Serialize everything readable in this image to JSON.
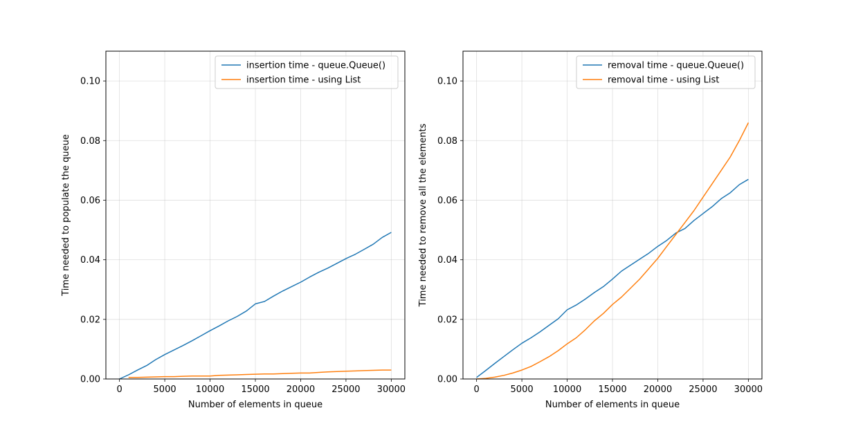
{
  "colors": {
    "blue": "#1f77b4",
    "orange": "#ff7f0e",
    "grid": "#b0b0b0"
  },
  "chart_data": [
    {
      "type": "line",
      "title": "",
      "xlabel": "Number of elements in queue",
      "ylabel": "Time needed to populate the queue",
      "xlim": [
        -1500,
        31500
      ],
      "ylim": [
        0.0,
        0.11
      ],
      "xticks": [
        0,
        5000,
        10000,
        15000,
        20000,
        25000,
        30000
      ],
      "xtick_labels": [
        "0",
        "5000",
        "10000",
        "15000",
        "20000",
        "25000",
        "30000"
      ],
      "yticks": [
        0.0,
        0.02,
        0.04,
        0.06,
        0.08,
        0.1
      ],
      "ytick_labels": [
        "0.00",
        "0.02",
        "0.04",
        "0.06",
        "0.08",
        "0.10"
      ],
      "grid": true,
      "legend": "upper right",
      "series": [
        {
          "name": "insertion time - queue.Queue()",
          "color": "#1f77b4",
          "x": [
            0,
            1000,
            2000,
            3000,
            4000,
            5000,
            6000,
            7000,
            8000,
            9000,
            10000,
            11000,
            12000,
            13000,
            14000,
            15000,
            16000,
            17000,
            18000,
            19000,
            20000,
            21000,
            22000,
            23000,
            24000,
            25000,
            26000,
            27000,
            28000,
            29000,
            30000
          ],
          "y": [
            0.0,
            0.0014,
            0.003,
            0.0045,
            0.0065,
            0.0082,
            0.0097,
            0.0112,
            0.0128,
            0.0145,
            0.0162,
            0.0178,
            0.0195,
            0.021,
            0.0228,
            0.0252,
            0.026,
            0.0278,
            0.0295,
            0.031,
            0.0325,
            0.0342,
            0.0358,
            0.0372,
            0.0388,
            0.0404,
            0.0418,
            0.0435,
            0.0452,
            0.0475,
            0.0492
          ]
        },
        {
          "name": "insertion time - using List",
          "color": "#ff7f0e",
          "x": [
            1000,
            2000,
            3000,
            4000,
            5000,
            6000,
            7000,
            8000,
            9000,
            10000,
            11000,
            12000,
            13000,
            14000,
            15000,
            16000,
            17000,
            18000,
            19000,
            20000,
            21000,
            22000,
            23000,
            24000,
            25000,
            26000,
            27000,
            28000,
            29000,
            30000
          ],
          "y": [
            0.0005,
            0.0005,
            0.0006,
            0.0007,
            0.0008,
            0.0008,
            0.0009,
            0.001,
            0.001,
            0.001,
            0.0012,
            0.0013,
            0.0014,
            0.0015,
            0.0016,
            0.0017,
            0.0017,
            0.0018,
            0.0019,
            0.002,
            0.002,
            0.0022,
            0.0024,
            0.0025,
            0.0026,
            0.0027,
            0.0028,
            0.0029,
            0.003,
            0.003
          ]
        }
      ]
    },
    {
      "type": "line",
      "title": "",
      "xlabel": "Number of elements in queue",
      "ylabel": "Time needed to remove all the elements",
      "xlim": [
        -1500,
        31500
      ],
      "ylim": [
        0.0,
        0.11
      ],
      "xticks": [
        0,
        5000,
        10000,
        15000,
        20000,
        25000,
        30000
      ],
      "xtick_labels": [
        "0",
        "5000",
        "10000",
        "15000",
        "20000",
        "25000",
        "30000"
      ],
      "yticks": [
        0.0,
        0.02,
        0.04,
        0.06,
        0.08,
        0.1
      ],
      "ytick_labels": [
        "0.00",
        "0.02",
        "0.04",
        "0.06",
        "0.08",
        "0.10"
      ],
      "grid": true,
      "legend": "upper right",
      "series": [
        {
          "name": "removal time - queue.Queue()",
          "color": "#1f77b4",
          "x": [
            0,
            1000,
            2000,
            3000,
            4000,
            5000,
            6000,
            7000,
            8000,
            9000,
            10000,
            11000,
            12000,
            13000,
            14000,
            15000,
            16000,
            17000,
            18000,
            19000,
            20000,
            21000,
            22000,
            23000,
            24000,
            25000,
            26000,
            27000,
            28000,
            29000,
            30000
          ],
          "y": [
            0.0005,
            0.0028,
            0.0052,
            0.0075,
            0.0098,
            0.012,
            0.0138,
            0.0158,
            0.018,
            0.0202,
            0.0232,
            0.0248,
            0.0268,
            0.029,
            0.031,
            0.0335,
            0.0362,
            0.0382,
            0.0402,
            0.0422,
            0.0445,
            0.0465,
            0.049,
            0.0505,
            0.0532,
            0.0555,
            0.0578,
            0.0605,
            0.0625,
            0.0652,
            0.067
          ]
        },
        {
          "name": "removal time - using List",
          "color": "#ff7f0e",
          "x": [
            0,
            1000,
            2000,
            3000,
            4000,
            5000,
            6000,
            7000,
            8000,
            9000,
            10000,
            11000,
            12000,
            13000,
            14000,
            15000,
            16000,
            17000,
            18000,
            19000,
            20000,
            21000,
            22000,
            23000,
            24000,
            25000,
            26000,
            27000,
            28000,
            29000,
            30000
          ],
          "y": [
            0.0,
            0.0002,
            0.0006,
            0.0012,
            0.002,
            0.003,
            0.0042,
            0.0058,
            0.0075,
            0.0095,
            0.0118,
            0.0138,
            0.0165,
            0.0195,
            0.022,
            0.025,
            0.0275,
            0.0305,
            0.0335,
            0.037,
            0.0405,
            0.0445,
            0.0485,
            0.0525,
            0.0565,
            0.061,
            0.0655,
            0.07,
            0.0745,
            0.08,
            0.086
          ]
        }
      ]
    }
  ]
}
